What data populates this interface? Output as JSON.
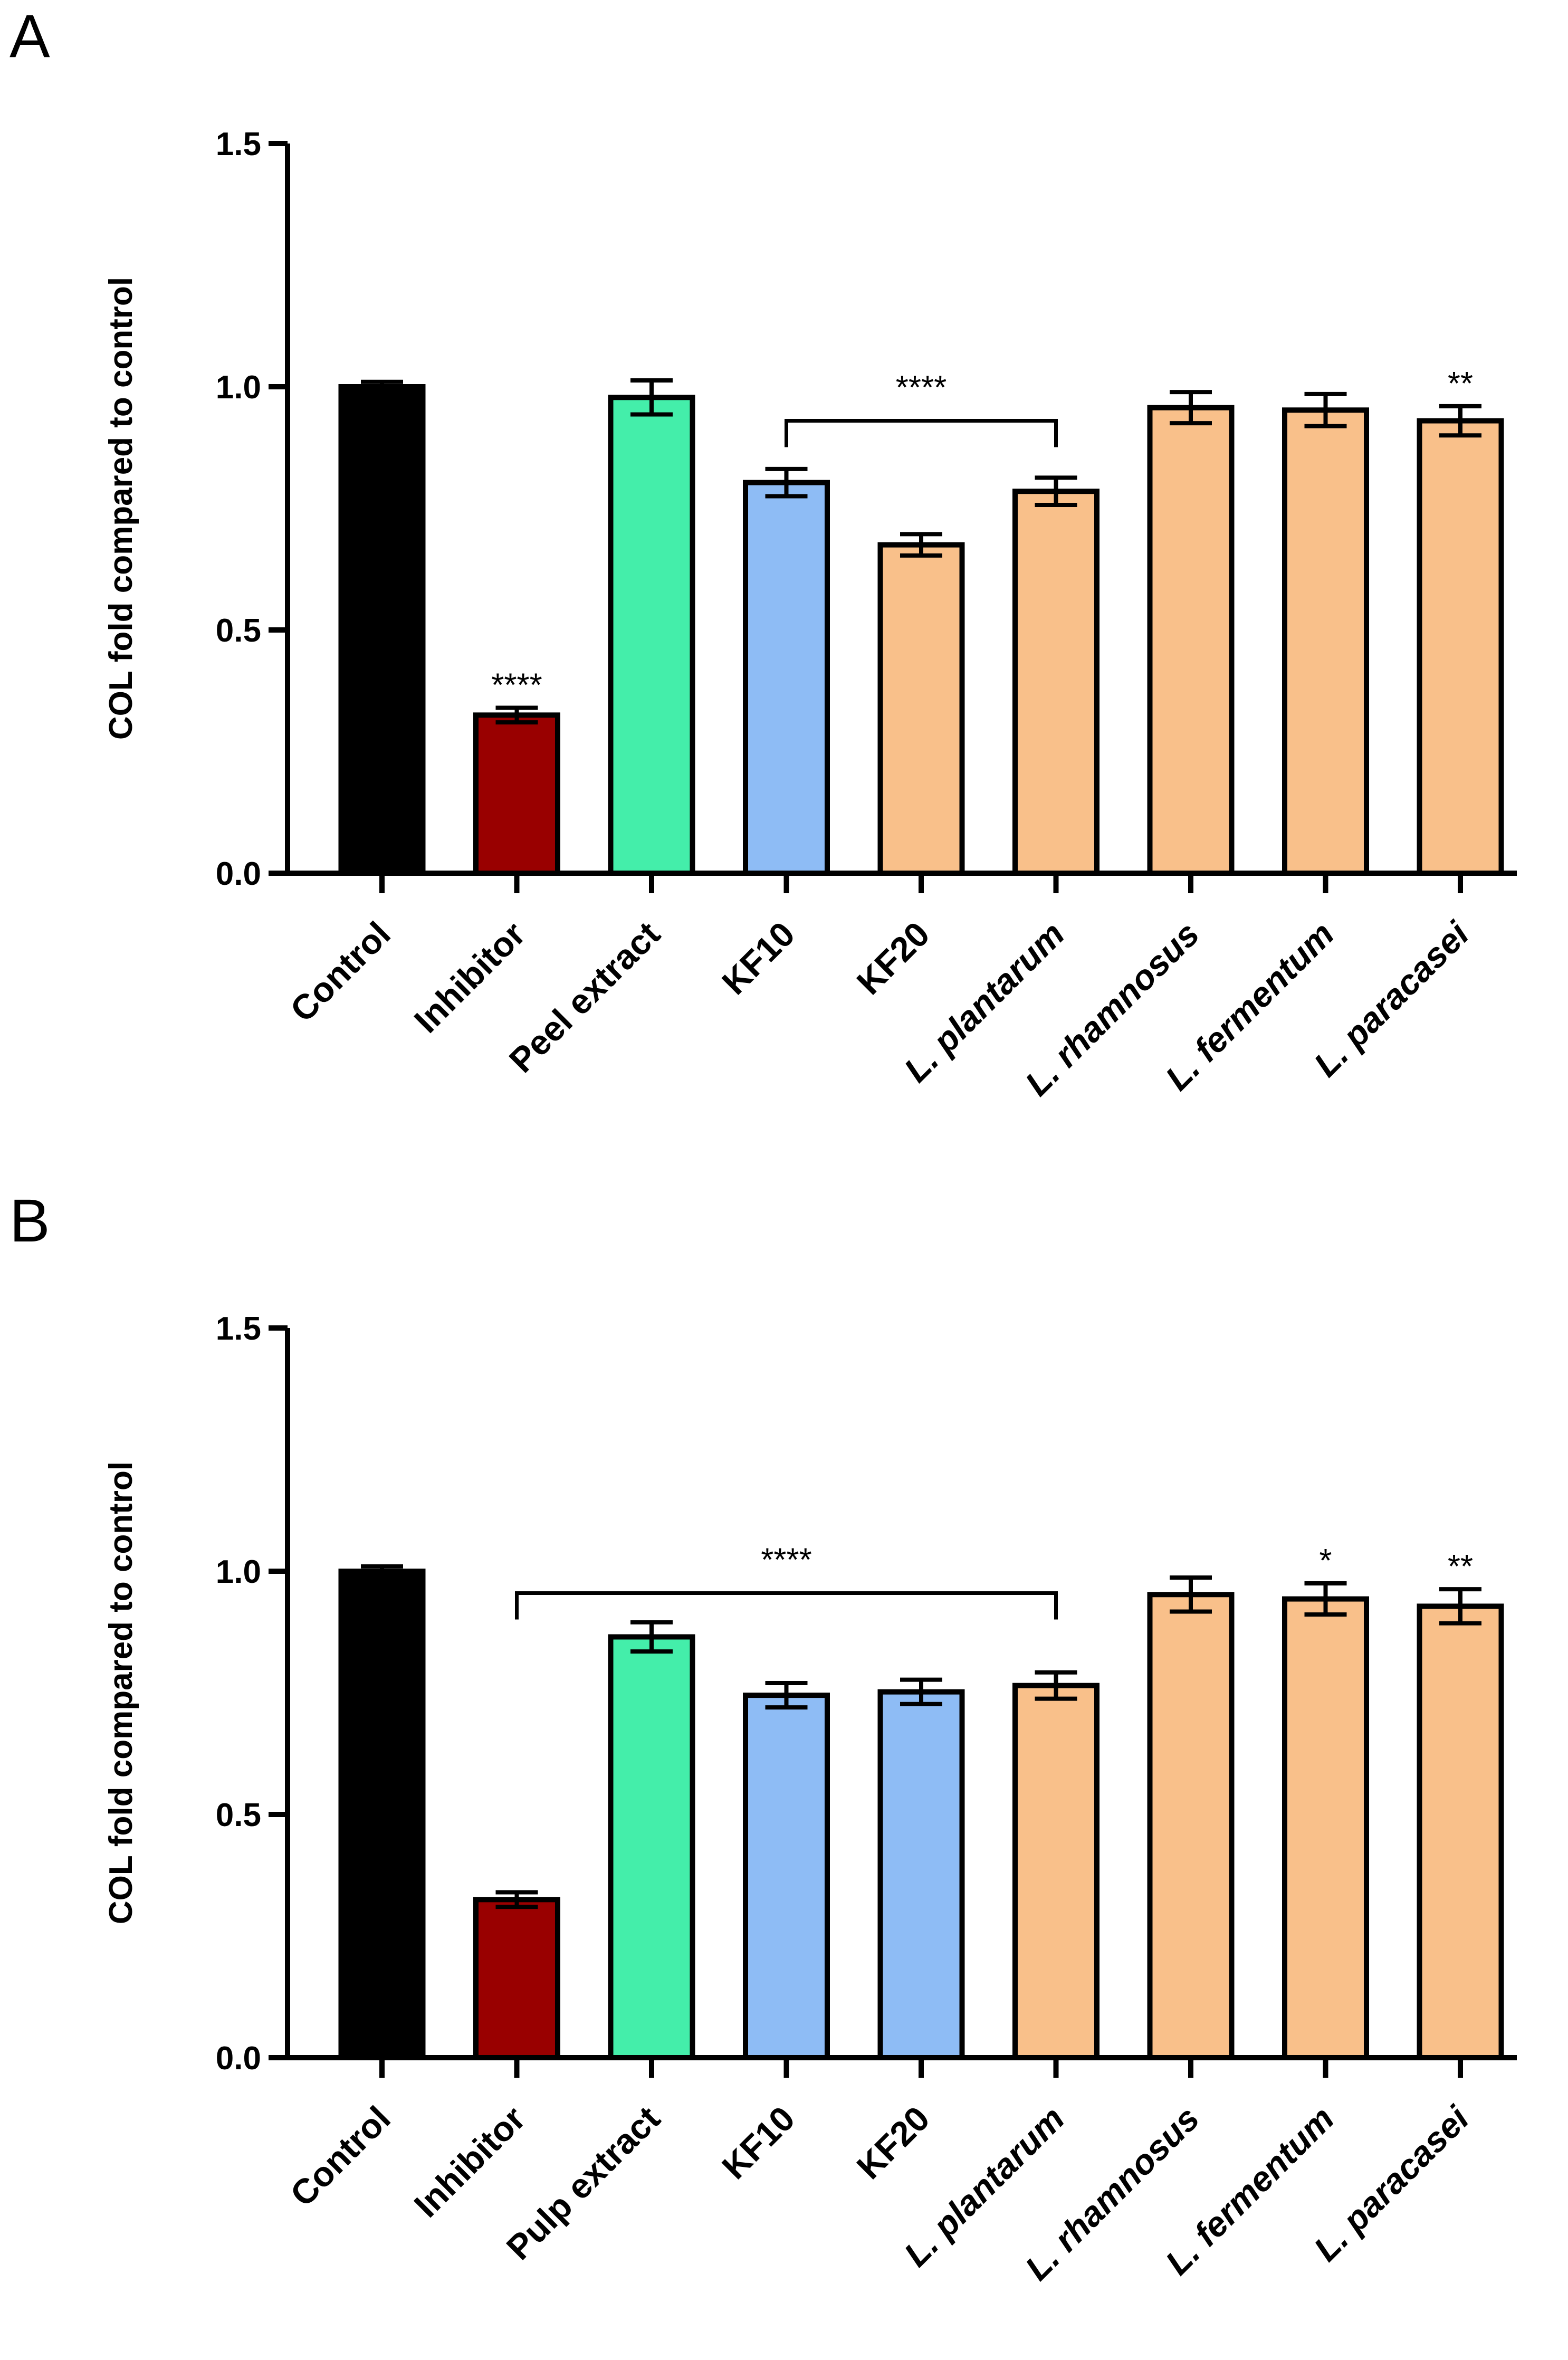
{
  "chart_data": [
    {
      "panel": "A",
      "type": "bar",
      "ylabel": "COL fold compared to control",
      "ylim": [
        0,
        1.5
      ],
      "yticks": [
        "0.0",
        "0.5",
        "1.0",
        "1.5"
      ],
      "categories": [
        "Control",
        "Inhibitor",
        "Peel extract",
        "KF10",
        "KF20",
        "L. plantarum",
        "L. rhamnosus",
        "L. fermentum",
        "L. paracasei"
      ],
      "italic": [
        false,
        false,
        false,
        false,
        false,
        true,
        true,
        true,
        true
      ],
      "values": [
        1.0,
        0.325,
        0.978,
        0.803,
        0.675,
        0.785,
        0.957,
        0.952,
        0.93
      ],
      "errors": [
        0.01,
        0.015,
        0.035,
        0.028,
        0.022,
        0.028,
        0.032,
        0.033,
        0.03
      ],
      "colors": [
        "#000000",
        "#990000",
        "#44eeaa",
        "#8ebcf5",
        "#f9c08a",
        "#f9c08a",
        "#f9c08a",
        "#f9c08a",
        "#f9c08a"
      ],
      "annotations": [
        {
          "category": 1,
          "text": "****"
        },
        {
          "category": 8,
          "text": "**"
        }
      ],
      "brackets": [
        {
          "from": 3,
          "to": 5,
          "y": 0.93,
          "text": "****"
        }
      ]
    },
    {
      "panel": "B",
      "type": "bar",
      "ylabel": "COL fold compared to control",
      "ylim": [
        0,
        1.5
      ],
      "yticks": [
        "0.0",
        "0.5",
        "1.0",
        "1.5"
      ],
      "categories": [
        "Control",
        "Inhibitor",
        "Pulp extract",
        "KF10",
        "KF20",
        "L. plantarum",
        "L. rhamnosus",
        "L. fermentum",
        "L. paracasei"
      ],
      "italic": [
        false,
        false,
        false,
        false,
        false,
        true,
        true,
        true,
        true
      ],
      "values": [
        1.0,
        0.325,
        0.865,
        0.745,
        0.752,
        0.765,
        0.952,
        0.943,
        0.928
      ],
      "errors": [
        0.01,
        0.015,
        0.03,
        0.025,
        0.025,
        0.027,
        0.035,
        0.032,
        0.035
      ],
      "colors": [
        "#000000",
        "#990000",
        "#44eeaa",
        "#8ebcf5",
        "#8ebcf5",
        "#f9c08a",
        "#f9c08a",
        "#f9c08a",
        "#f9c08a"
      ],
      "annotations": [
        {
          "category": 7,
          "text": "*"
        },
        {
          "category": 8,
          "text": "**"
        }
      ],
      "brackets": [
        {
          "from": 1,
          "to": 5,
          "y": 0.955,
          "text": "****"
        }
      ]
    }
  ]
}
